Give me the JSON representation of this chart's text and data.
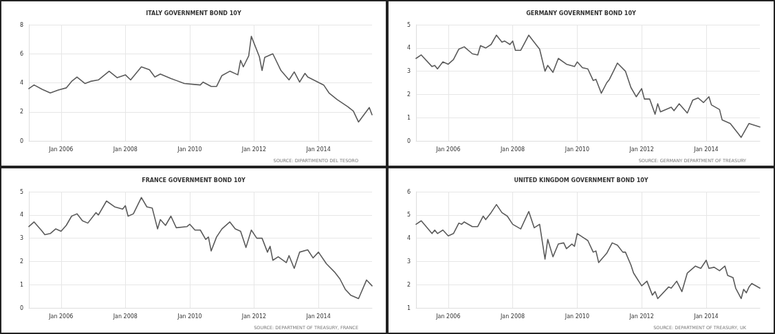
{
  "chart_data": [
    {
      "type": "line",
      "title": "ITALY GOVERNMENT BOND 10Y",
      "annotations": [
        "SOURCE: DIPARTIMENTO DEL TESORO"
      ],
      "xlim": [
        "2005-01",
        "2015-09"
      ],
      "xticks": [
        {
          "value": "2006-01",
          "label": "Jan 2006"
        },
        {
          "value": "2008-01",
          "label": "Jan 2008"
        },
        {
          "value": "2010-01",
          "label": "Jan 2010"
        },
        {
          "value": "2012-01",
          "label": "Jan 2012"
        },
        {
          "value": "2014-01",
          "label": "Jan 2014"
        }
      ],
      "ylim": [
        0,
        8
      ],
      "yticks": [
        0,
        2,
        4,
        6,
        8
      ],
      "grid": true,
      "marker": "none",
      "line_style": "solid",
      "series": [
        {
          "color": "#5a5a5a",
          "x": [
            "2005-01",
            "2005-03",
            "2005-06",
            "2005-09",
            "2005-12",
            "2006-03",
            "2006-05",
            "2006-07",
            "2006-10",
            "2006-12",
            "2007-03",
            "2007-07",
            "2007-10",
            "2008-01",
            "2008-03",
            "2008-07",
            "2008-10",
            "2008-12",
            "2009-02",
            "2009-06",
            "2009-11",
            "2010-02",
            "2010-05",
            "2010-06",
            "2010-09",
            "2010-11",
            "2011-01",
            "2011-04",
            "2011-07",
            "2011-08",
            "2011-09",
            "2011-11",
            "2011-12",
            "2012-03",
            "2012-04",
            "2012-05",
            "2012-08",
            "2012-11",
            "2013-02",
            "2013-04",
            "2013-06",
            "2013-08",
            "2013-09",
            "2014-03",
            "2014-05",
            "2014-08",
            "2014-12",
            "2015-02",
            "2015-04",
            "2015-08",
            "2015-09"
          ],
          "values": [
            3.6,
            3.85,
            3.55,
            3.3,
            3.5,
            3.65,
            4.1,
            4.4,
            3.95,
            4.1,
            4.2,
            4.8,
            4.35,
            4.55,
            4.2,
            5.1,
            4.9,
            4.4,
            4.6,
            4.3,
            3.95,
            3.9,
            3.85,
            4.05,
            3.75,
            3.75,
            4.5,
            4.8,
            4.55,
            5.55,
            5.1,
            5.85,
            7.2,
            5.8,
            4.85,
            5.75,
            6.0,
            4.85,
            4.2,
            4.75,
            4.05,
            4.65,
            4.4,
            3.85,
            3.3,
            2.85,
            2.35,
            2.05,
            1.3,
            2.3,
            1.8
          ]
        }
      ]
    },
    {
      "type": "line",
      "title": "GERMANY GOVERNMENT BOND 10Y",
      "annotations": [
        "SOURCE: GERMANY DEPARTMENT OF TREASURY"
      ],
      "xlim": [
        "2005-01",
        "2015-09"
      ],
      "xticks": [
        {
          "value": "2006-01",
          "label": "Jan 2006"
        },
        {
          "value": "2008-01",
          "label": "Jan 2008"
        },
        {
          "value": "2010-01",
          "label": "Jan 2010"
        },
        {
          "value": "2012-01",
          "label": "Jan 2012"
        },
        {
          "value": "2014-01",
          "label": "Jan 2014"
        }
      ],
      "ylim": [
        0,
        5
      ],
      "yticks": [
        0,
        1,
        2,
        3,
        4,
        5
      ],
      "grid": true,
      "marker": "none",
      "line_style": "solid",
      "series": [
        {
          "color": "#5a5a5a",
          "x": [
            "2005-01",
            "2005-03",
            "2005-07",
            "2005-08",
            "2005-09",
            "2005-11",
            "2006-01",
            "2006-03",
            "2006-05",
            "2006-07",
            "2006-10",
            "2006-12",
            "2007-01",
            "2007-03",
            "2007-05",
            "2007-07",
            "2007-09",
            "2007-10",
            "2007-12",
            "2008-01",
            "2008-02",
            "2008-04",
            "2008-07",
            "2008-10",
            "2008-11",
            "2009-01",
            "2009-02",
            "2009-04",
            "2009-06",
            "2009-09",
            "2009-12",
            "2010-01",
            "2010-03",
            "2010-05",
            "2010-07",
            "2010-08",
            "2010-10",
            "2010-12",
            "2011-01",
            "2011-03",
            "2011-04",
            "2011-07",
            "2011-09",
            "2011-11",
            "2012-01",
            "2012-02",
            "2012-04",
            "2012-06",
            "2012-07",
            "2012-08",
            "2012-12",
            "2013-01",
            "2013-03",
            "2013-06",
            "2013-08",
            "2013-10",
            "2013-12",
            "2014-02",
            "2014-03",
            "2014-06",
            "2014-07",
            "2014-10",
            "2015-01",
            "2015-02",
            "2015-05",
            "2015-09"
          ],
          "values": [
            3.55,
            3.7,
            3.2,
            3.25,
            3.1,
            3.4,
            3.3,
            3.5,
            3.95,
            4.05,
            3.75,
            3.7,
            4.1,
            4.0,
            4.15,
            4.55,
            4.25,
            4.3,
            4.15,
            4.3,
            3.9,
            3.9,
            4.55,
            4.1,
            3.95,
            3.0,
            3.25,
            2.95,
            3.55,
            3.3,
            3.2,
            3.4,
            3.15,
            3.1,
            2.6,
            2.65,
            2.05,
            2.5,
            2.65,
            3.1,
            3.35,
            3.0,
            2.3,
            1.9,
            2.25,
            1.8,
            1.8,
            1.15,
            1.6,
            1.25,
            1.45,
            1.3,
            1.6,
            1.2,
            1.75,
            1.85,
            1.65,
            1.9,
            1.55,
            1.35,
            0.9,
            0.75,
            0.3,
            0.15,
            0.75,
            0.6
          ]
        }
      ]
    },
    {
      "type": "line",
      "title": "FRANCE GOVERNMENT BOND 10Y",
      "annotations": [
        "SOURCE: DEPARTMENT OF TREASURY, FRANCE"
      ],
      "xlim": [
        "2005-01",
        "2015-09"
      ],
      "xticks": [
        {
          "value": "2006-01",
          "label": "Jan 2006"
        },
        {
          "value": "2008-01",
          "label": "Jan 2008"
        },
        {
          "value": "2010-01",
          "label": "Jan 2010"
        },
        {
          "value": "2012-01",
          "label": "Jan 2012"
        },
        {
          "value": "2014-01",
          "label": "Jan 2014"
        }
      ],
      "ylim": [
        0,
        5
      ],
      "yticks": [
        0,
        1,
        2,
        3,
        4,
        5
      ],
      "grid": true,
      "marker": "none",
      "line_style": "solid",
      "series": [
        {
          "color": "#5a5a5a",
          "x": [
            "2005-01",
            "2005-03",
            "2005-06",
            "2005-07",
            "2005-09",
            "2005-11",
            "2006-01",
            "2006-03",
            "2006-05",
            "2006-07",
            "2006-09",
            "2006-11",
            "2007-02",
            "2007-03",
            "2007-06",
            "2007-09",
            "2007-12",
            "2008-01",
            "2008-02",
            "2008-04",
            "2008-07",
            "2008-09",
            "2008-11",
            "2009-01",
            "2009-02",
            "2009-04",
            "2009-06",
            "2009-08",
            "2009-12",
            "2010-01",
            "2010-03",
            "2010-05",
            "2010-07",
            "2010-08",
            "2010-09",
            "2010-11",
            "2011-01",
            "2011-04",
            "2011-06",
            "2011-08",
            "2011-10",
            "2011-12",
            "2012-02",
            "2012-04",
            "2012-06",
            "2012-07",
            "2012-08",
            "2012-10",
            "2013-01",
            "2013-02",
            "2013-04",
            "2013-06",
            "2013-09",
            "2013-11",
            "2014-01",
            "2014-04",
            "2014-07",
            "2014-09",
            "2014-11",
            "2015-01",
            "2015-04",
            "2015-07",
            "2015-09"
          ],
          "values": [
            3.5,
            3.7,
            3.3,
            3.15,
            3.2,
            3.4,
            3.3,
            3.55,
            3.95,
            4.05,
            3.75,
            3.65,
            4.1,
            4.0,
            4.6,
            4.35,
            4.25,
            4.4,
            3.95,
            4.05,
            4.75,
            4.35,
            4.3,
            3.4,
            3.8,
            3.55,
            3.95,
            3.45,
            3.5,
            3.6,
            3.35,
            3.35,
            2.95,
            3.05,
            2.45,
            3.05,
            3.4,
            3.7,
            3.4,
            3.3,
            2.6,
            3.35,
            3.0,
            3.0,
            2.4,
            2.65,
            2.05,
            2.2,
            1.95,
            2.25,
            1.7,
            2.4,
            2.5,
            2.15,
            2.4,
            1.9,
            1.55,
            1.25,
            0.8,
            0.55,
            0.4,
            1.2,
            0.95
          ]
        }
      ]
    },
    {
      "type": "line",
      "title": "UNITED KINGDOM GOVERNMENT BOND 10Y",
      "annotations": [
        "SOURCE: DEPARTMENT OF TREASURY, UK"
      ],
      "xlim": [
        "2005-01",
        "2015-09"
      ],
      "xticks": [
        {
          "value": "2006-01",
          "label": "Jan 2006"
        },
        {
          "value": "2008-01",
          "label": "Jan 2008"
        },
        {
          "value": "2010-01",
          "label": "Jan 2010"
        },
        {
          "value": "2012-01",
          "label": "Jan 2012"
        },
        {
          "value": "2014-01",
          "label": "Jan 2014"
        }
      ],
      "ylim": [
        1,
        6
      ],
      "yticks": [
        1,
        2,
        3,
        4,
        5,
        6
      ],
      "grid": true,
      "marker": "none",
      "line_style": "solid",
      "series": [
        {
          "color": "#5a5a5a",
          "x": [
            "2005-01",
            "2005-03",
            "2005-07",
            "2005-08",
            "2005-09",
            "2005-11",
            "2006-01",
            "2006-03",
            "2006-05",
            "2006-06",
            "2006-07",
            "2006-10",
            "2006-12",
            "2007-02",
            "2007-03",
            "2007-05",
            "2007-07",
            "2007-09",
            "2007-11",
            "2008-01",
            "2008-04",
            "2008-07",
            "2008-09",
            "2008-11",
            "2009-01",
            "2009-02",
            "2009-04",
            "2009-06",
            "2009-08",
            "2009-09",
            "2009-11",
            "2009-12",
            "2010-01",
            "2010-03",
            "2010-05",
            "2010-07",
            "2010-08",
            "2010-09",
            "2010-12",
            "2011-02",
            "2011-04",
            "2011-06",
            "2011-07",
            "2011-09",
            "2011-10",
            "2012-01",
            "2012-03",
            "2012-05",
            "2012-06",
            "2012-07",
            "2012-11",
            "2012-12",
            "2013-02",
            "2013-04",
            "2013-06",
            "2013-09",
            "2013-11",
            "2014-01",
            "2014-02",
            "2014-04",
            "2014-06",
            "2014-08",
            "2014-09",
            "2014-11",
            "2014-12",
            "2015-02",
            "2015-03",
            "2015-04",
            "2015-05",
            "2015-06",
            "2015-09"
          ],
          "values": [
            4.6,
            4.75,
            4.2,
            4.35,
            4.2,
            4.35,
            4.1,
            4.2,
            4.65,
            4.6,
            4.7,
            4.5,
            4.5,
            4.95,
            4.8,
            5.1,
            5.45,
            5.1,
            4.95,
            4.6,
            4.4,
            5.15,
            4.45,
            4.6,
            3.1,
            3.95,
            3.2,
            3.75,
            3.8,
            3.55,
            3.75,
            3.65,
            4.2,
            4.05,
            3.9,
            3.4,
            3.45,
            2.95,
            3.35,
            3.8,
            3.7,
            3.4,
            3.4,
            2.85,
            2.5,
            1.95,
            2.15,
            1.55,
            1.7,
            1.4,
            1.9,
            1.85,
            2.15,
            1.7,
            2.5,
            2.8,
            2.7,
            3.05,
            2.7,
            2.75,
            2.6,
            2.8,
            2.4,
            2.3,
            1.85,
            1.4,
            1.8,
            1.65,
            1.9,
            2.05,
            1.85
          ]
        }
      ]
    }
  ]
}
